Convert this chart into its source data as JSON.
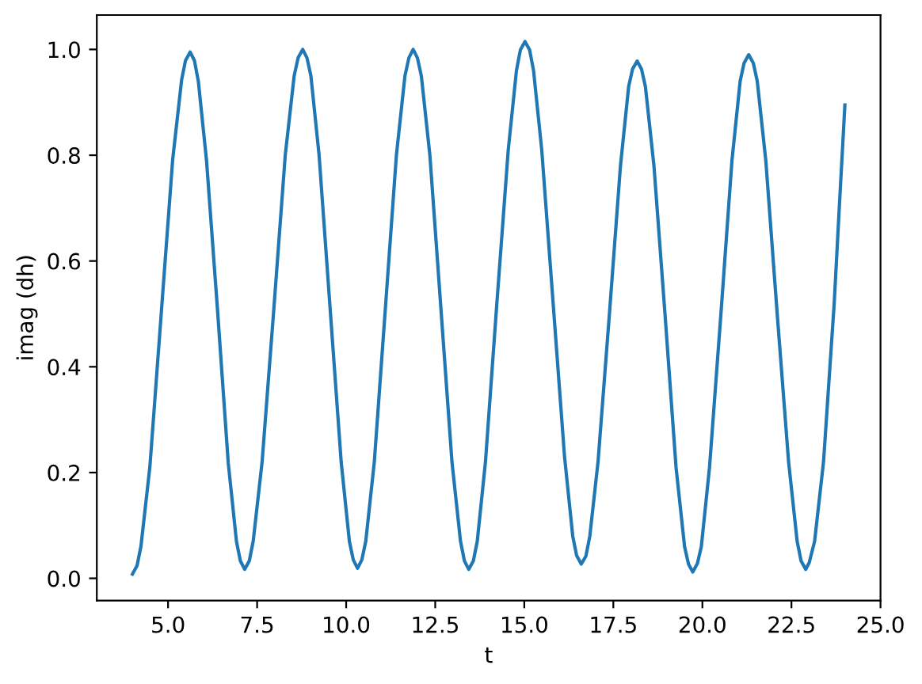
{
  "chart_data": {
    "type": "line",
    "xlabel": "t",
    "ylabel": "imag (dh)",
    "x": [
      4.0,
      4.13,
      4.24,
      4.49,
      4.81,
      5.13,
      5.38,
      5.49,
      5.62,
      5.74,
      5.85,
      6.08,
      6.39,
      6.69,
      6.92,
      7.03,
      7.15,
      7.28,
      7.39,
      7.64,
      7.97,
      8.29,
      8.54,
      8.65,
      8.78,
      8.9,
      9.01,
      9.24,
      9.55,
      9.86,
      10.09,
      10.2,
      10.32,
      10.44,
      10.55,
      10.79,
      11.1,
      11.41,
      11.65,
      11.76,
      11.88,
      12.0,
      12.11,
      12.35,
      12.66,
      12.97,
      13.21,
      13.32,
      13.44,
      13.57,
      13.68,
      13.91,
      14.23,
      14.55,
      14.78,
      14.89,
      15.02,
      15.15,
      15.26,
      15.49,
      15.81,
      16.13,
      16.36,
      16.47,
      16.6,
      16.73,
      16.84,
      17.07,
      17.39,
      17.7,
      17.93,
      18.04,
      18.17,
      18.29,
      18.4,
      18.64,
      18.95,
      19.26,
      19.5,
      19.61,
      19.73,
      19.86,
      19.97,
      20.2,
      20.52,
      20.83,
      21.06,
      21.17,
      21.3,
      21.43,
      21.54,
      21.78,
      22.1,
      22.42,
      22.66,
      22.77,
      22.9,
      23.0,
      23.15,
      23.4,
      23.7,
      23.85,
      24.0
    ],
    "series": [
      {
        "color": "#1f77b4",
        "values": [
          0.008,
          0.024,
          0.061,
          0.211,
          0.502,
          0.792,
          0.942,
          0.979,
          0.995,
          0.979,
          0.94,
          0.79,
          0.506,
          0.218,
          0.07,
          0.033,
          0.017,
          0.033,
          0.07,
          0.22,
          0.51,
          0.8,
          0.95,
          0.984,
          1.0,
          0.984,
          0.95,
          0.8,
          0.51,
          0.22,
          0.07,
          0.035,
          0.019,
          0.035,
          0.07,
          0.22,
          0.51,
          0.8,
          0.95,
          0.984,
          1.0,
          0.984,
          0.95,
          0.8,
          0.51,
          0.22,
          0.07,
          0.033,
          0.017,
          0.033,
          0.07,
          0.22,
          0.52,
          0.81,
          0.96,
          0.999,
          1.015,
          0.999,
          0.96,
          0.81,
          0.52,
          0.23,
          0.08,
          0.043,
          0.027,
          0.042,
          0.08,
          0.22,
          0.5,
          0.78,
          0.93,
          0.963,
          0.978,
          0.963,
          0.93,
          0.78,
          0.5,
          0.21,
          0.06,
          0.027,
          0.012,
          0.028,
          0.06,
          0.21,
          0.5,
          0.79,
          0.94,
          0.974,
          0.99,
          0.974,
          0.94,
          0.79,
          0.5,
          0.22,
          0.07,
          0.033,
          0.017,
          0.03,
          0.07,
          0.22,
          0.52,
          0.71,
          0.895
        ]
      }
    ],
    "xlim": [
      3,
      25
    ],
    "ylim": [
      -0.042,
      1.065
    ],
    "xticks": [
      {
        "value": 5,
        "label": "5.0"
      },
      {
        "value": 7.5,
        "label": "7.5"
      },
      {
        "value": 10,
        "label": "10.0"
      },
      {
        "value": 12.5,
        "label": "12.5"
      },
      {
        "value": 15,
        "label": "15.0"
      },
      {
        "value": 17.5,
        "label": "17.5"
      },
      {
        "value": 20,
        "label": "20.0"
      },
      {
        "value": 22.5,
        "label": "22.5"
      },
      {
        "value": 25,
        "label": "25.0"
      }
    ],
    "yticks": [
      {
        "value": 0,
        "label": "0.0"
      },
      {
        "value": 0.2,
        "label": "0.2"
      },
      {
        "value": 0.4,
        "label": "0.4"
      },
      {
        "value": 0.6,
        "label": "0.6"
      },
      {
        "value": 0.8,
        "label": "0.8"
      },
      {
        "value": 1,
        "label": "1.0"
      }
    ]
  }
}
